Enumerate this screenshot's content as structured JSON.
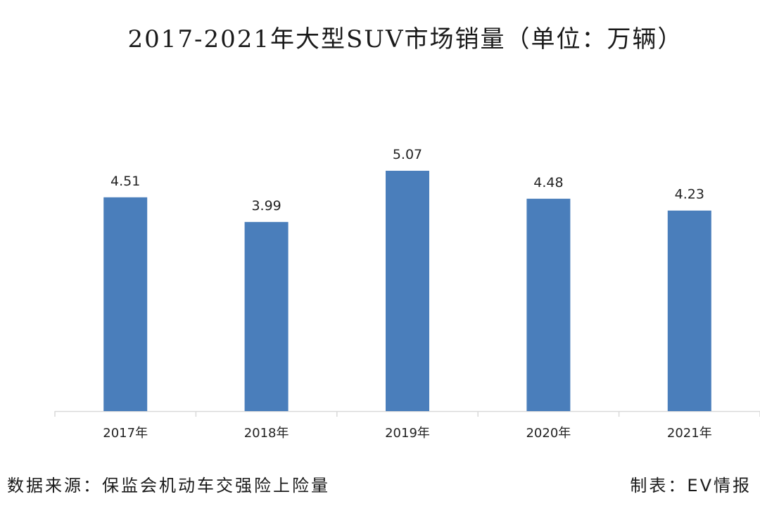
{
  "chart_data": {
    "type": "bar",
    "title": "2017-2021年大型SUV市场销量（单位：万辆）",
    "categories": [
      "2017年",
      "2018年",
      "2019年",
      "2020年",
      "2021年"
    ],
    "values": [
      4.51,
      3.99,
      5.07,
      4.48,
      4.23
    ],
    "value_labels": [
      "4.51",
      "3.99",
      "5.07",
      "4.48",
      "4.23"
    ],
    "xlabel": "",
    "ylabel": "",
    "ylim": [
      0,
      6.3
    ],
    "grid": false,
    "legend": "none",
    "colors": {
      "bar": "#4a7ebb",
      "axis": "#d9d9d9"
    }
  },
  "footer": {
    "source": "数据来源：保监会机动车交强险上险量",
    "maker": "制表：EV情报"
  }
}
